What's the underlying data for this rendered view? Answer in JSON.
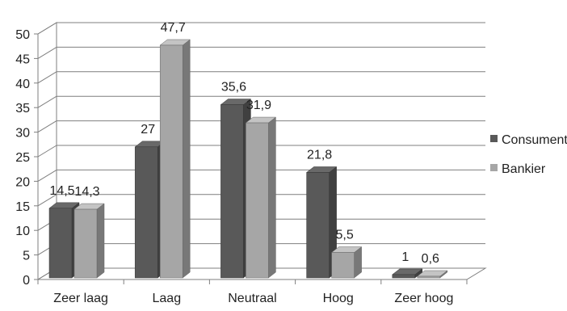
{
  "chart_data": {
    "type": "bar",
    "categories": [
      "Zeer laag",
      "Laag",
      "Neutraal",
      "Hoog",
      "Zeer hoog"
    ],
    "series": [
      {
        "name": "Consument",
        "values": [
          14.5,
          27,
          35.6,
          21.8,
          1
        ],
        "labels": [
          "14,5",
          "27",
          "35,6",
          "21,8",
          "1"
        ],
        "color": "#595959"
      },
      {
        "name": "Bankier",
        "values": [
          14.3,
          47.7,
          31.9,
          5.5,
          0.6
        ],
        "labels": [
          "14,3",
          "47,7",
          "31,9",
          "5,5",
          "0,6"
        ],
        "color": "#a6a6a6"
      }
    ],
    "ylim": [
      0,
      50
    ],
    "yticks": [
      "0",
      "5",
      "10",
      "15",
      "20",
      "25",
      "30",
      "35",
      "40",
      "45",
      "50"
    ],
    "grid": true,
    "style": "3d-clustered-column",
    "legend_position": "right"
  }
}
